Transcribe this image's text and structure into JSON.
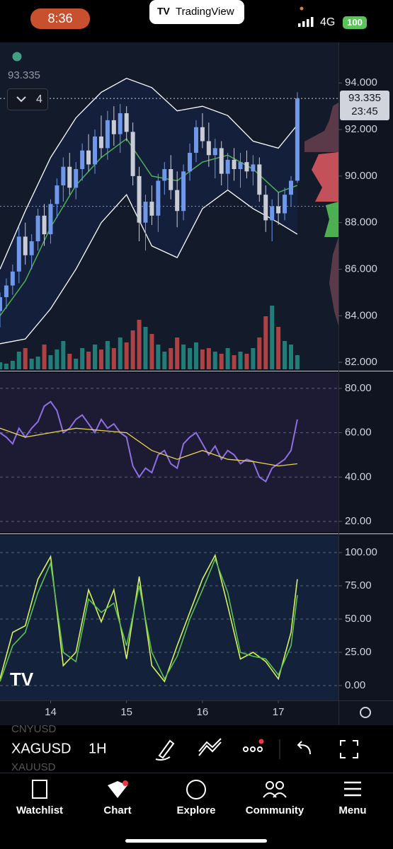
{
  "status_bar": {
    "time": "8:36",
    "app": "TradingView",
    "network": "4G",
    "battery": "100"
  },
  "legend": {
    "price": "93.335",
    "indicators_count": "4"
  },
  "price_label": {
    "price": "93.335",
    "countdown": "23:45"
  },
  "toolbar": {
    "symbol": "XAGUSD",
    "interval": "1H",
    "ghost_symbols": [
      "CNYUSD",
      "XAUUSD"
    ]
  },
  "nav": [
    "Watchlist",
    "Chart",
    "Explore",
    "Community",
    "Menu"
  ],
  "chart_data": [
    {
      "type": "candlestick",
      "open": [
        84.2,
        84.8,
        85.3,
        85.9,
        87.4,
        86.6,
        87.2,
        88.3,
        87.5,
        88.8,
        89.6,
        90.4,
        89.5,
        90.3,
        91.1,
        90.5,
        91.7,
        91.2,
        92.4,
        91.8,
        92.7,
        91.9,
        90.0,
        88.0,
        88.9,
        88.3,
        89.8,
        90.3,
        89.4,
        88.5,
        90.2,
        91.0,
        92.1,
        91.5,
        90.9,
        91.2,
        90.1,
        90.7,
        90.3,
        90.6,
        90.2,
        90.5,
        89.2,
        88.1,
        88.7,
        88.4,
        89.2,
        89.8
      ],
      "high": [
        85.0,
        85.6,
        86.2,
        87.8,
        88.0,
        87.5,
        88.6,
        88.8,
        89.0,
        89.9,
        90.8,
        91.0,
        90.6,
        91.4,
        91.8,
        92.0,
        92.6,
        92.8,
        93.0,
        93.1,
        93.0,
        92.3,
        90.4,
        89.2,
        89.6,
        90.1,
        90.6,
        90.9,
        90.2,
        90.5,
        91.4,
        92.4,
        92.7,
        92.3,
        91.6,
        91.5,
        91.0,
        91.2,
        91.0,
        91.1,
        90.9,
        90.8,
        89.6,
        89.0,
        89.3,
        89.5,
        90.0,
        93.6
      ],
      "low": [
        83.5,
        84.3,
        84.9,
        85.4,
        86.2,
        86.0,
        86.8,
        87.0,
        87.1,
        88.2,
        88.9,
        89.2,
        89.0,
        89.8,
        90.2,
        90.1,
        90.8,
        90.7,
        91.3,
        91.0,
        91.5,
        89.6,
        87.2,
        86.8,
        87.9,
        87.6,
        89.2,
        89.0,
        87.8,
        88.1,
        89.8,
        90.6,
        91.2,
        90.4,
        89.9,
        89.6,
        89.4,
        89.8,
        89.5,
        89.9,
        89.6,
        88.9,
        87.6,
        87.2,
        87.9,
        88.1,
        88.7,
        89.7
      ],
      "close": [
        84.8,
        85.3,
        85.9,
        87.4,
        86.6,
        87.2,
        88.3,
        87.5,
        88.8,
        89.6,
        90.4,
        89.5,
        90.3,
        91.1,
        90.5,
        91.7,
        91.2,
        92.4,
        91.8,
        92.7,
        91.9,
        90.0,
        88.0,
        88.9,
        88.3,
        89.8,
        90.3,
        89.4,
        88.5,
        90.2,
        91.0,
        92.1,
        91.5,
        90.9,
        91.2,
        90.1,
        90.7,
        90.3,
        90.6,
        90.2,
        90.5,
        89.2,
        88.1,
        88.7,
        88.4,
        89.2,
        89.8,
        93.335
      ],
      "up_color": "#6f97ea",
      "down_color": "#c9ccd4",
      "xlim": [
        0,
        53.5
      ],
      "xticks": [
        {
          "value": 8,
          "label": "14"
        },
        {
          "value": 20,
          "label": "15"
        },
        {
          "value": 32,
          "label": "16"
        },
        {
          "value": 44,
          "label": "17"
        }
      ],
      "ylim": [
        81.7,
        95.74
      ],
      "yticks": [
        {
          "value": 82,
          "label": "82.000"
        },
        {
          "value": 84,
          "label": "84.000"
        },
        {
          "value": 86,
          "label": "86.000"
        },
        {
          "value": 88,
          "label": "88.000"
        },
        {
          "value": 90,
          "label": "90.000"
        },
        {
          "value": 92,
          "label": "92.000"
        },
        {
          "value": 94,
          "label": "94.000"
        }
      ],
      "bands": {
        "x": [
          0,
          4,
          8,
          12,
          16,
          20,
          24,
          28,
          32,
          36,
          40,
          44,
          47
        ],
        "upper": [
          86.0,
          88.5,
          90.8,
          92.5,
          93.6,
          94.2,
          93.8,
          92.8,
          93.0,
          92.6,
          91.5,
          91.2,
          92.2
        ],
        "lower": [
          82.8,
          83.0,
          84.3,
          86.0,
          88.0,
          89.2,
          87.0,
          86.5,
          88.6,
          89.4,
          88.6,
          88.0,
          87.5
        ],
        "ma": [
          84.0,
          85.5,
          87.8,
          89.6,
          90.8,
          91.6,
          90.0,
          89.8,
          90.6,
          90.9,
          90.3,
          89.3,
          89.6
        ],
        "color": "#ffffff",
        "ma_color": "#4caf50"
      },
      "hlines": [
        88.7
      ],
      "volume": {
        "values": [
          10,
          8,
          12,
          25,
          30,
          15,
          18,
          35,
          20,
          28,
          40,
          22,
          15,
          30,
          25,
          35,
          28,
          40,
          30,
          45,
          38,
          55,
          70,
          60,
          50,
          35,
          25,
          30,
          45,
          35,
          30,
          38,
          28,
          30,
          25,
          22,
          30,
          20,
          25,
          22,
          30,
          45,
          75,
          90,
          60,
          40,
          35,
          20
        ],
        "ylim": [
          0,
          100
        ],
        "up_color": "#26a69a",
        "down_color": "#ef5350"
      }
    },
    {
      "type": "line",
      "values": [
        60,
        58,
        55,
        62,
        58,
        62,
        65,
        72,
        74,
        70,
        60,
        62,
        66,
        68,
        64,
        60,
        66,
        62,
        64,
        60,
        58,
        45,
        40,
        44,
        42,
        50,
        52,
        46,
        44,
        55,
        58,
        60,
        55,
        50,
        54,
        48,
        52,
        50,
        46,
        48,
        47,
        40,
        38,
        44,
        46,
        48,
        52,
        66
      ],
      "color": "#8e6fe0",
      "ma": {
        "x": [
          0,
          4,
          8,
          12,
          16,
          20,
          24,
          28,
          32,
          36,
          40,
          44,
          47
        ],
        "values": [
          62,
          58,
          60,
          62,
          61,
          60,
          52,
          48,
          52,
          48,
          47,
          45,
          46
        ],
        "color": "#e8d44d"
      },
      "ylim": [
        15.2,
        87.0
      ],
      "yticks": [
        {
          "value": 20,
          "label": "20.00"
        },
        {
          "value": 40,
          "label": "40.00"
        },
        {
          "value": 60,
          "label": "60.00"
        },
        {
          "value": 80,
          "label": "80.00"
        }
      ]
    },
    {
      "type": "line",
      "x": [
        0,
        2,
        4,
        6,
        8,
        10,
        12,
        14,
        16,
        18,
        20,
        22,
        24,
        26,
        28,
        30,
        32,
        34,
        36,
        38,
        40,
        42,
        44,
        46,
        47
      ],
      "series": [
        {
          "values": [
            5,
            40,
            45,
            80,
            97,
            15,
            25,
            72,
            48,
            72,
            20,
            82,
            15,
            3,
            30,
            55,
            80,
            98,
            60,
            20,
            25,
            18,
            5,
            40,
            80
          ],
          "color": "#d8f25c"
        },
        {
          "values": [
            3,
            30,
            40,
            70,
            92,
            25,
            18,
            65,
            55,
            62,
            30,
            75,
            25,
            5,
            22,
            50,
            72,
            95,
            70,
            25,
            22,
            20,
            8,
            30,
            68
          ],
          "color": "#5cbf4f"
        }
      ],
      "ylim": [
        -11.2,
        112.8
      ],
      "yticks": [
        {
          "value": 0,
          "label": "0.00"
        },
        {
          "value": 25,
          "label": "25.00"
        },
        {
          "value": 50,
          "label": "50.00"
        },
        {
          "value": 75,
          "label": "75.00"
        },
        {
          "value": 100,
          "label": "100.00"
        }
      ]
    }
  ]
}
